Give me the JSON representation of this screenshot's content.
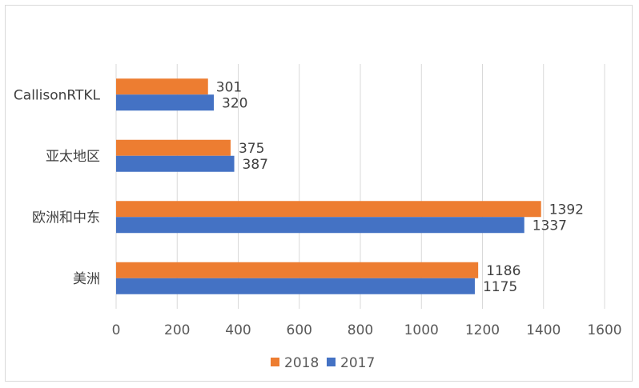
{
  "chart_data": {
    "type": "bar",
    "orientation": "horizontal",
    "categories": [
      "CallisonRTKL",
      "亚太地区",
      "欧洲和中东",
      "美洲"
    ],
    "series": [
      {
        "name": "2018",
        "values": [
          301,
          375,
          1392,
          1186
        ],
        "color": "#ED7D31"
      },
      {
        "name": "2017",
        "values": [
          320,
          387,
          1337,
          1175
        ],
        "color": "#4472C4"
      }
    ],
    "xlim": [
      0,
      1600
    ],
    "xticks": [
      "0",
      "200",
      "400",
      "600",
      "800",
      "1000",
      "1200",
      "1400",
      "1600"
    ],
    "grid": true,
    "legend": "bottom",
    "title": "",
    "xlabel": "",
    "ylabel": ""
  }
}
